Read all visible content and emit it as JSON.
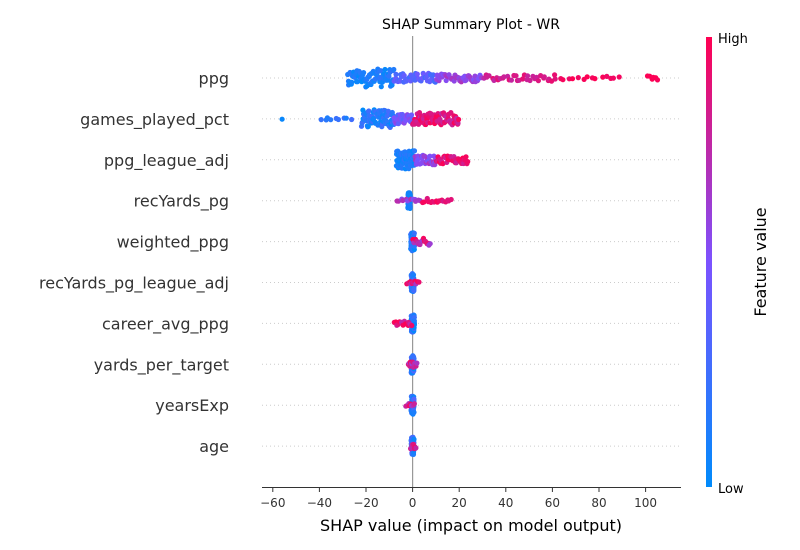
{
  "chart_data": {
    "type": "scatter",
    "title": "SHAP Summary Plot - WR",
    "xlabel": "SHAP value (impact on model output)",
    "xlim": [
      -65,
      112
    ],
    "xticks": [
      -60,
      -40,
      -20,
      0,
      20,
      40,
      60,
      80,
      100
    ],
    "colorbar": {
      "label": "Feature value",
      "high": "High",
      "low": "Low",
      "low_color": "#008bfb",
      "high_color": "#ff0052"
    },
    "features": [
      {
        "name": "ppg",
        "clusters": [
          {
            "from": -28,
            "to": -8,
            "n": 80,
            "val": [
              0.0,
              0.2
            ],
            "spread": 1.0
          },
          {
            "from": -8,
            "to": 10,
            "n": 45,
            "val": [
              0.25,
              0.45
            ],
            "spread": 0.55
          },
          {
            "from": 10,
            "to": 30,
            "n": 40,
            "val": [
              0.5,
              0.7
            ],
            "spread": 0.45
          },
          {
            "from": 30,
            "to": 62,
            "n": 35,
            "val": [
              0.75,
              0.92
            ],
            "spread": 0.35
          },
          {
            "from": 62,
            "to": 90,
            "n": 14,
            "val": [
              0.92,
              1.0
            ],
            "spread": 0.2
          },
          {
            "from": 100,
            "to": 106,
            "n": 6,
            "val": [
              0.97,
              1.0
            ],
            "spread": 0.25
          }
        ]
      },
      {
        "name": "games_played_pct",
        "clusters": [
          {
            "from": -57,
            "to": -55,
            "n": 1,
            "val": [
              0.0,
              0.05
            ],
            "spread": 0.05
          },
          {
            "from": -40,
            "to": -26,
            "n": 9,
            "val": [
              0.1,
              0.3
            ],
            "spread": 0.15
          },
          {
            "from": -22,
            "to": -8,
            "n": 80,
            "val": [
              0.0,
              0.3
            ],
            "spread": 1.0
          },
          {
            "from": -8,
            "to": 0,
            "n": 30,
            "val": [
              0.35,
              0.6
            ],
            "spread": 0.55
          },
          {
            "from": 0,
            "to": 20,
            "n": 70,
            "val": [
              0.75,
              1.0
            ],
            "spread": 0.7
          }
        ]
      },
      {
        "name": "ppg_league_adj",
        "clusters": [
          {
            "from": -7,
            "to": 1,
            "n": 90,
            "val": [
              0.0,
              0.2
            ],
            "spread": 1.0
          },
          {
            "from": 1,
            "to": 10,
            "n": 35,
            "val": [
              0.45,
              0.7
            ],
            "spread": 0.55
          },
          {
            "from": 10,
            "to": 24,
            "n": 35,
            "val": [
              0.8,
              1.0
            ],
            "spread": 0.45
          }
        ]
      },
      {
        "name": "recYards_pg",
        "clusters": [
          {
            "from": -2,
            "to": -1,
            "n": 70,
            "val": [
              0.0,
              0.15
            ],
            "spread": 0.9
          },
          {
            "from": -7,
            "to": 4,
            "n": 12,
            "val": [
              0.5,
              0.75
            ],
            "spread": 0.2
          },
          {
            "from": 4,
            "to": 17,
            "n": 16,
            "val": [
              0.85,
              1.0
            ],
            "spread": 0.25
          }
        ]
      },
      {
        "name": "weighted_ppg",
        "clusters": [
          {
            "from": -0.8,
            "to": 0.8,
            "n": 70,
            "val": [
              0.0,
              0.3
            ],
            "spread": 1.0
          },
          {
            "from": 0,
            "to": 8,
            "n": 16,
            "val": [
              0.6,
              1.0
            ],
            "spread": 0.4
          }
        ]
      },
      {
        "name": "recYards_pg_league_adj",
        "clusters": [
          {
            "from": -0.6,
            "to": 0.6,
            "n": 65,
            "val": [
              0.0,
              0.3
            ],
            "spread": 1.0
          },
          {
            "from": -2.5,
            "to": 3,
            "n": 10,
            "val": [
              0.6,
              1.0
            ],
            "spread": 0.2
          }
        ]
      },
      {
        "name": "career_avg_ppg",
        "clusters": [
          {
            "from": -0.6,
            "to": 0.8,
            "n": 65,
            "val": [
              0.0,
              0.3
            ],
            "spread": 1.0
          },
          {
            "from": -8,
            "to": 0,
            "n": 14,
            "val": [
              0.7,
              1.0
            ],
            "spread": 0.25
          }
        ]
      },
      {
        "name": "yards_per_target",
        "clusters": [
          {
            "from": -0.6,
            "to": 0.6,
            "n": 65,
            "val": [
              0.0,
              0.35
            ],
            "spread": 1.0
          },
          {
            "from": -2,
            "to": 2,
            "n": 12,
            "val": [
              0.6,
              1.0
            ],
            "spread": 0.35
          }
        ]
      },
      {
        "name": "yearsExp",
        "clusters": [
          {
            "from": -0.6,
            "to": 0.6,
            "n": 65,
            "val": [
              0.0,
              0.35
            ],
            "spread": 1.0
          },
          {
            "from": -3,
            "to": 1,
            "n": 8,
            "val": [
              0.6,
              1.0
            ],
            "spread": 0.25
          }
        ]
      },
      {
        "name": "age",
        "clusters": [
          {
            "from": -0.6,
            "to": 0.6,
            "n": 65,
            "val": [
              0.0,
              0.4
            ],
            "spread": 1.0
          },
          {
            "from": -1,
            "to": 1.5,
            "n": 8,
            "val": [
              0.7,
              1.0
            ],
            "spread": 0.3
          }
        ]
      }
    ]
  }
}
